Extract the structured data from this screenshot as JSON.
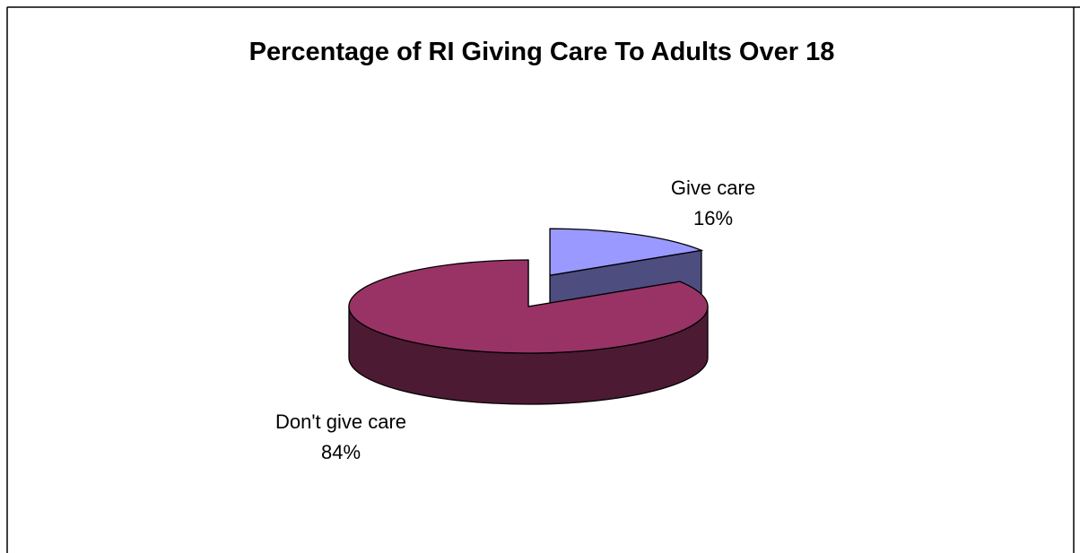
{
  "chart_data": {
    "type": "pie",
    "title": "Percentage of RI Giving Care To Adults Over 18",
    "style": "3d-exploded",
    "slices": [
      {
        "label": "Give care",
        "value": 16,
        "value_label": "16%",
        "color": "#9999ff",
        "side_color": "#4d4d80",
        "exploded": true
      },
      {
        "label": "Don't give care",
        "value": 84,
        "value_label": "84%",
        "color": "#993366",
        "side_color": "#4d1a33",
        "exploded": false
      }
    ],
    "legend": "none",
    "background": "#ffffff",
    "outline_color": "#000000"
  }
}
